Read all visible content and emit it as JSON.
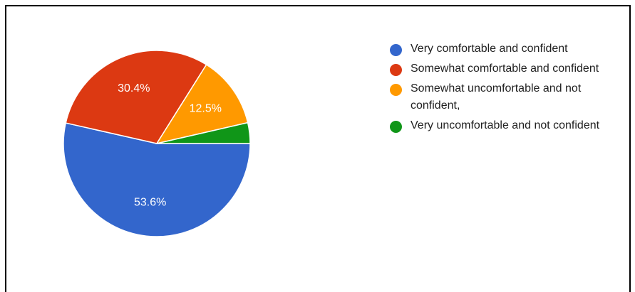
{
  "chart_data": {
    "type": "pie",
    "title": "",
    "legend_position": "right",
    "slices": [
      {
        "label": "Very comfortable and confident",
        "value": 53.6,
        "value_label": "53.6%",
        "color": "#3366cc"
      },
      {
        "label": "Somewhat comfortable and confident",
        "value": 30.4,
        "value_label": "30.4%",
        "color": "#dc3912"
      },
      {
        "label": "Somewhat uncomfortable and not confident,",
        "value": 12.5,
        "value_label": "12.5%",
        "color": "#ff9900"
      },
      {
        "label": "Very uncomfortable and not confident",
        "value": 3.6,
        "value_label": "",
        "color": "#109618"
      }
    ]
  }
}
